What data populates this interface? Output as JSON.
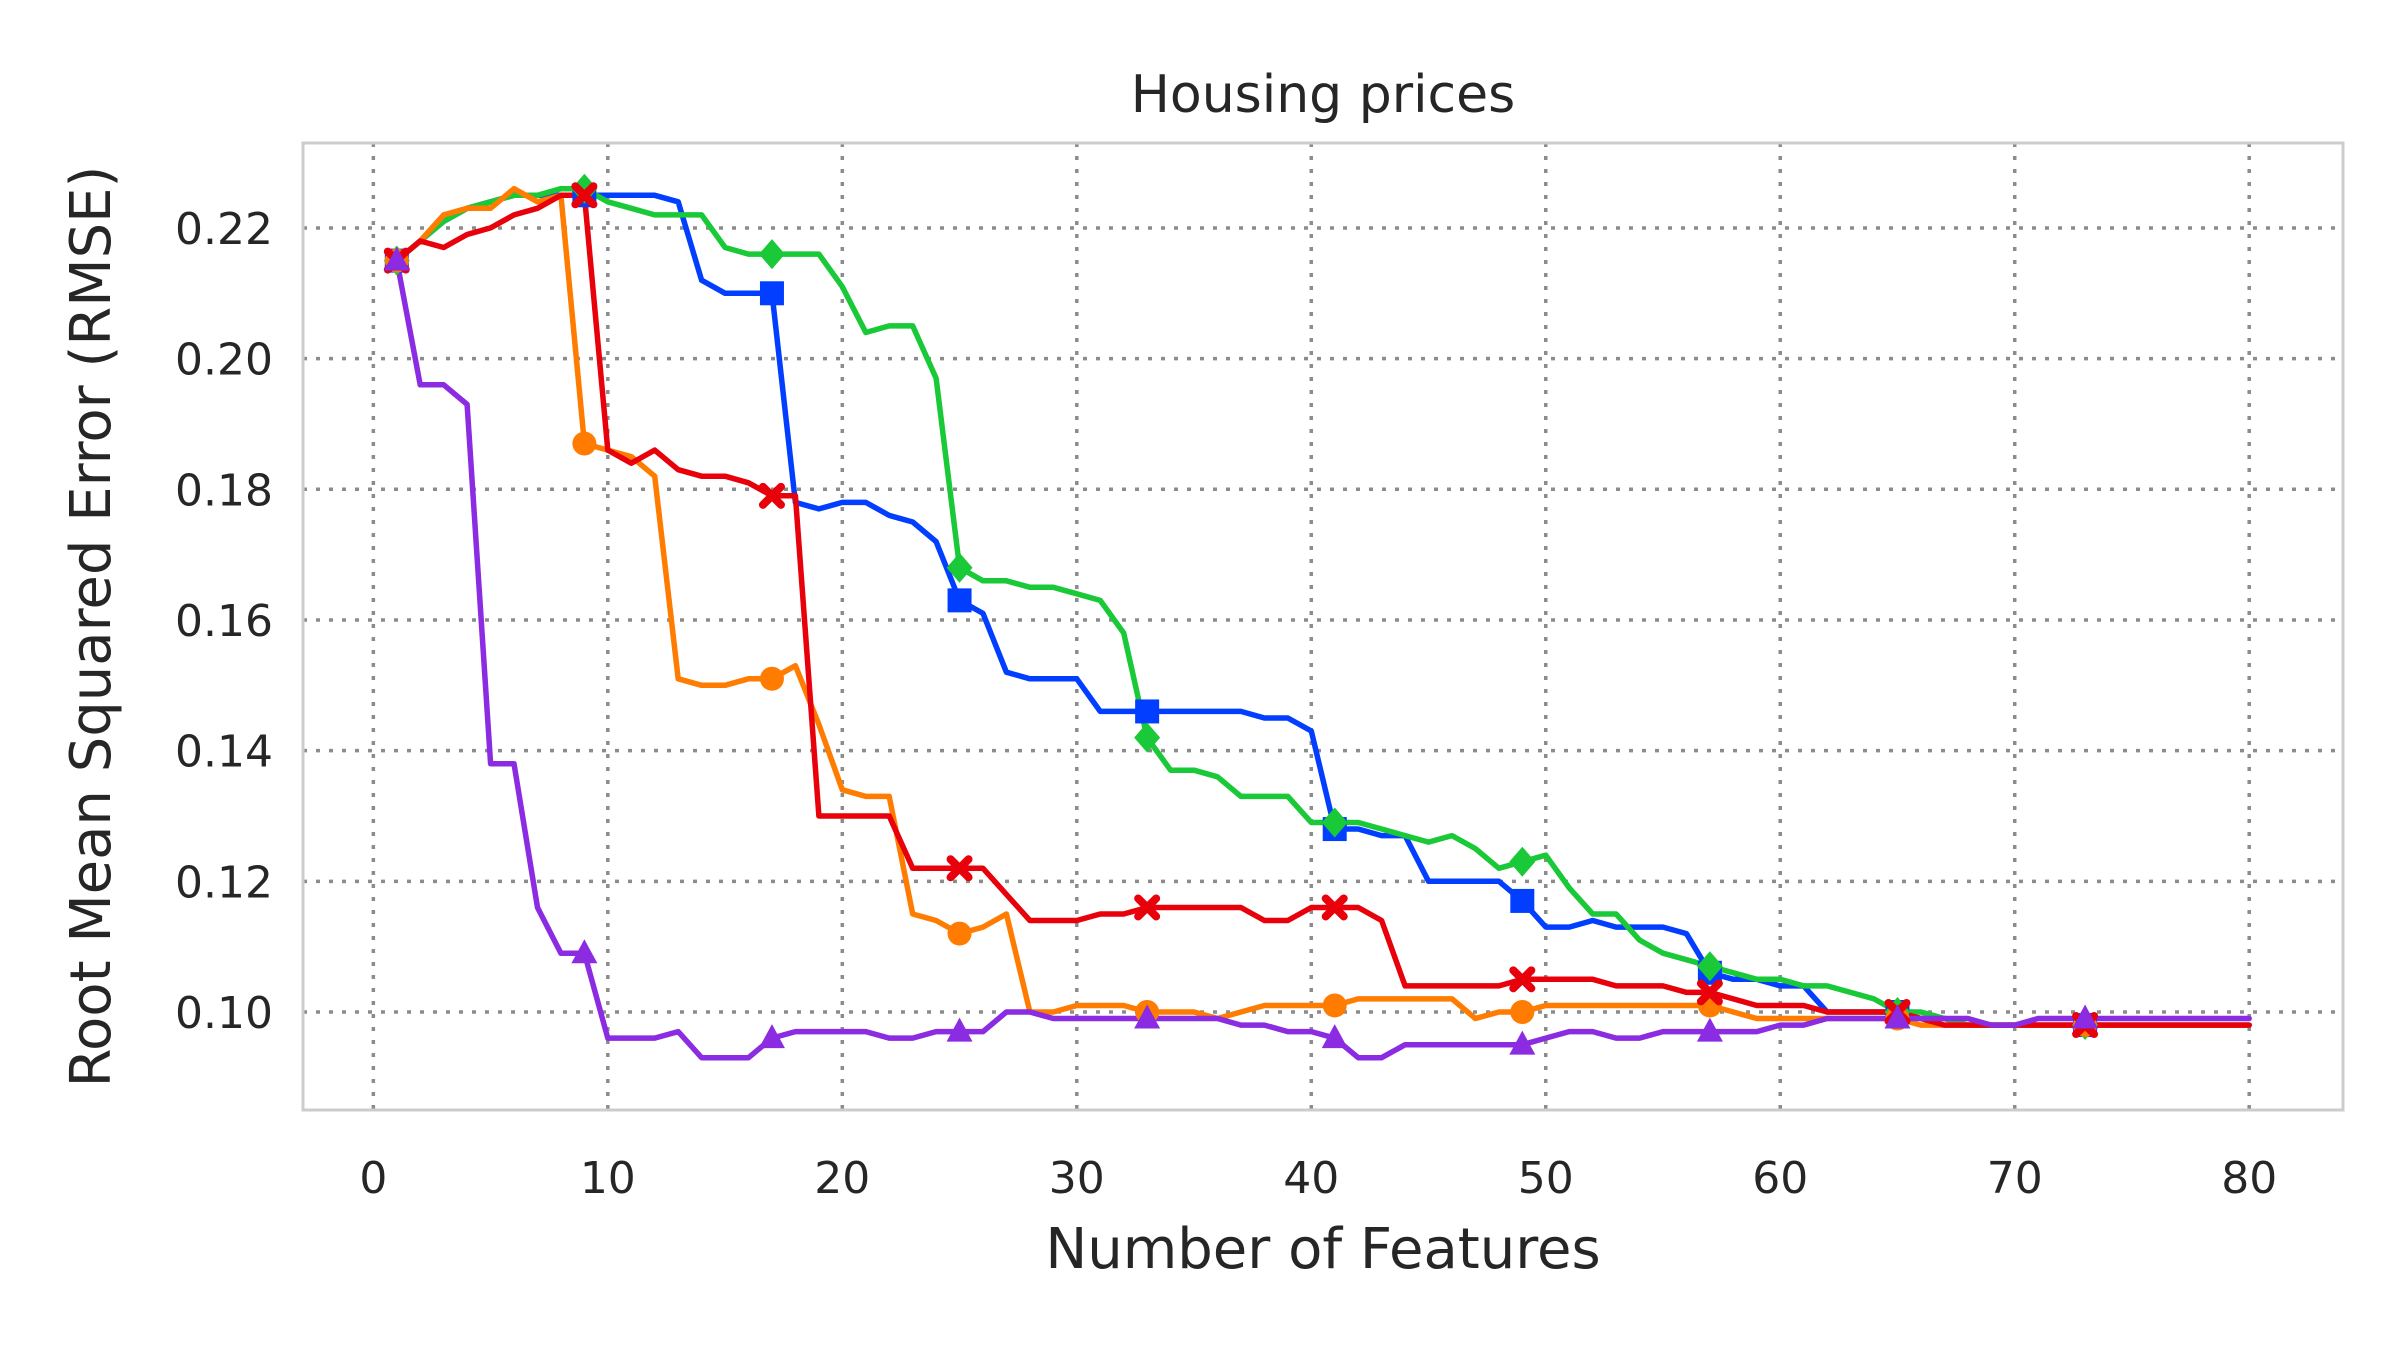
{
  "chart_data": {
    "type": "line",
    "title": "Housing prices",
    "xlabel": "Number of Features",
    "ylabel": "Root Mean Squared Error (RMSE)",
    "xlim": [
      -3,
      84
    ],
    "ylim": [
      0.085,
      0.233
    ],
    "xticks": [
      0,
      10,
      20,
      30,
      40,
      50,
      60,
      70,
      80
    ],
    "yticks": [
      0.1,
      0.12,
      0.14,
      0.16,
      0.18,
      0.2,
      0.22
    ],
    "xtick_labels": [
      "0",
      "10",
      "20",
      "30",
      "40",
      "50",
      "60",
      "70",
      "80"
    ],
    "ytick_labels": [
      "0.10",
      "0.12",
      "0.14",
      "0.16",
      "0.18",
      "0.20",
      "0.22"
    ],
    "grid": true,
    "legend": "none",
    "series": [
      {
        "color": "#023eff",
        "marker": "square",
        "marker_x": [
          1,
          9,
          17,
          25,
          33,
          41,
          49,
          57,
          65,
          73
        ],
        "x": [
          1,
          2,
          3,
          4,
          5,
          6,
          7,
          8,
          9,
          10,
          11,
          12,
          13,
          14,
          15,
          16,
          17,
          18,
          19,
          20,
          21,
          22,
          23,
          24,
          25,
          26,
          27,
          28,
          29,
          30,
          31,
          32,
          33,
          34,
          35,
          36,
          37,
          38,
          39,
          40,
          41,
          42,
          43,
          44,
          45,
          46,
          47,
          48,
          49,
          50,
          51,
          52,
          53,
          54,
          55,
          56,
          57,
          58,
          59,
          60,
          61,
          62,
          63,
          64,
          65,
          66,
          67,
          68,
          69,
          70,
          71,
          72,
          73,
          74,
          75,
          76,
          77,
          78,
          79,
          80
        ],
        "y": [
          0.215,
          0.218,
          0.221,
          0.223,
          0.224,
          0.225,
          0.225,
          0.225,
          0.225,
          0.225,
          0.225,
          0.225,
          0.224,
          0.212,
          0.21,
          0.21,
          0.21,
          0.178,
          0.177,
          0.178,
          0.178,
          0.176,
          0.175,
          0.172,
          0.163,
          0.161,
          0.152,
          0.151,
          0.151,
          0.151,
          0.146,
          0.146,
          0.146,
          0.146,
          0.146,
          0.146,
          0.146,
          0.145,
          0.145,
          0.143,
          0.128,
          0.128,
          0.127,
          0.127,
          0.12,
          0.12,
          0.12,
          0.12,
          0.117,
          0.113,
          0.113,
          0.114,
          0.113,
          0.113,
          0.113,
          0.112,
          0.106,
          0.105,
          0.105,
          0.104,
          0.104,
          0.1,
          0.1,
          0.1,
          0.1,
          0.099,
          0.099,
          0.098,
          0.098,
          0.098,
          0.098,
          0.098,
          0.098,
          0.098,
          0.098,
          0.098,
          0.098,
          0.098,
          0.098,
          0.098
        ]
      },
      {
        "color": "#1ac938",
        "marker": "diamond",
        "marker_x": [
          1,
          9,
          17,
          25,
          33,
          41,
          49,
          57,
          65,
          73
        ],
        "x": [
          1,
          2,
          3,
          4,
          5,
          6,
          7,
          8,
          9,
          10,
          11,
          12,
          13,
          14,
          15,
          16,
          17,
          18,
          19,
          20,
          21,
          22,
          23,
          24,
          25,
          26,
          27,
          28,
          29,
          30,
          31,
          32,
          33,
          34,
          35,
          36,
          37,
          38,
          39,
          40,
          41,
          42,
          43,
          44,
          45,
          46,
          47,
          48,
          49,
          50,
          51,
          52,
          53,
          54,
          55,
          56,
          57,
          58,
          59,
          60,
          61,
          62,
          63,
          64,
          65,
          66,
          67,
          68,
          69,
          70,
          71,
          72,
          73,
          74,
          75,
          76,
          77,
          78,
          79,
          80
        ],
        "y": [
          0.215,
          0.218,
          0.221,
          0.223,
          0.224,
          0.225,
          0.225,
          0.226,
          0.226,
          0.224,
          0.223,
          0.222,
          0.222,
          0.222,
          0.217,
          0.216,
          0.216,
          0.216,
          0.216,
          0.211,
          0.204,
          0.205,
          0.205,
          0.197,
          0.168,
          0.166,
          0.166,
          0.165,
          0.165,
          0.164,
          0.163,
          0.158,
          0.142,
          0.137,
          0.137,
          0.136,
          0.133,
          0.133,
          0.133,
          0.129,
          0.129,
          0.129,
          0.128,
          0.127,
          0.126,
          0.127,
          0.125,
          0.122,
          0.123,
          0.124,
          0.119,
          0.115,
          0.115,
          0.111,
          0.109,
          0.108,
          0.107,
          0.106,
          0.105,
          0.105,
          0.104,
          0.104,
          0.103,
          0.102,
          0.1,
          0.1,
          0.099,
          0.098,
          0.098,
          0.098,
          0.098,
          0.098,
          0.098,
          0.098,
          0.098,
          0.098,
          0.098,
          0.098,
          0.098,
          0.098
        ]
      },
      {
        "color": "#ff7c00",
        "marker": "circle",
        "marker_x": [
          1,
          9,
          17,
          25,
          33,
          41,
          49,
          57,
          65,
          73
        ],
        "x": [
          1,
          2,
          3,
          4,
          5,
          6,
          7,
          8,
          9,
          10,
          11,
          12,
          13,
          14,
          15,
          16,
          17,
          18,
          19,
          20,
          21,
          22,
          23,
          24,
          25,
          26,
          27,
          28,
          29,
          30,
          31,
          32,
          33,
          34,
          35,
          36,
          37,
          38,
          39,
          40,
          41,
          42,
          43,
          44,
          45,
          46,
          47,
          48,
          49,
          50,
          51,
          52,
          53,
          54,
          55,
          56,
          57,
          58,
          59,
          60,
          61,
          62,
          63,
          64,
          65,
          66,
          67,
          68,
          69,
          70,
          71,
          72,
          73,
          74,
          75,
          76,
          77,
          78,
          79,
          80
        ],
        "y": [
          0.215,
          0.218,
          0.222,
          0.223,
          0.223,
          0.226,
          0.224,
          0.225,
          0.187,
          0.186,
          0.185,
          0.182,
          0.151,
          0.15,
          0.15,
          0.151,
          0.151,
          0.153,
          0.144,
          0.134,
          0.133,
          0.133,
          0.115,
          0.114,
          0.112,
          0.113,
          0.115,
          0.1,
          0.1,
          0.101,
          0.101,
          0.101,
          0.1,
          0.1,
          0.1,
          0.099,
          0.1,
          0.101,
          0.101,
          0.101,
          0.101,
          0.102,
          0.102,
          0.102,
          0.102,
          0.102,
          0.099,
          0.1,
          0.1,
          0.101,
          0.101,
          0.101,
          0.101,
          0.101,
          0.101,
          0.101,
          0.101,
          0.1,
          0.099,
          0.099,
          0.099,
          0.099,
          0.099,
          0.099,
          0.099,
          0.098,
          0.098,
          0.098,
          0.098,
          0.098,
          0.098,
          0.098,
          0.098,
          0.098,
          0.098,
          0.098,
          0.098,
          0.098,
          0.098,
          0.098
        ]
      },
      {
        "color": "#e8000b",
        "marker": "x",
        "marker_x": [
          1,
          9,
          17,
          25,
          33,
          41,
          49,
          57,
          65,
          73
        ],
        "x": [
          1,
          2,
          3,
          4,
          5,
          6,
          7,
          8,
          9,
          10,
          11,
          12,
          13,
          14,
          15,
          16,
          17,
          18,
          19,
          20,
          21,
          22,
          23,
          24,
          25,
          26,
          27,
          28,
          29,
          30,
          31,
          32,
          33,
          34,
          35,
          36,
          37,
          38,
          39,
          40,
          41,
          42,
          43,
          44,
          45,
          46,
          47,
          48,
          49,
          50,
          51,
          52,
          53,
          54,
          55,
          56,
          57,
          58,
          59,
          60,
          61,
          62,
          63,
          64,
          65,
          66,
          67,
          68,
          69,
          70,
          71,
          72,
          73,
          74,
          75,
          76,
          77,
          78,
          79,
          80
        ],
        "y": [
          0.215,
          0.218,
          0.217,
          0.219,
          0.22,
          0.222,
          0.223,
          0.225,
          0.225,
          0.186,
          0.184,
          0.186,
          0.183,
          0.182,
          0.182,
          0.181,
          0.179,
          0.179,
          0.13,
          0.13,
          0.13,
          0.13,
          0.122,
          0.122,
          0.122,
          0.122,
          0.118,
          0.114,
          0.114,
          0.114,
          0.115,
          0.115,
          0.116,
          0.116,
          0.116,
          0.116,
          0.116,
          0.114,
          0.114,
          0.116,
          0.116,
          0.116,
          0.114,
          0.104,
          0.104,
          0.104,
          0.104,
          0.104,
          0.105,
          0.105,
          0.105,
          0.105,
          0.104,
          0.104,
          0.104,
          0.103,
          0.103,
          0.102,
          0.101,
          0.101,
          0.101,
          0.1,
          0.1,
          0.1,
          0.1,
          0.099,
          0.098,
          0.098,
          0.098,
          0.098,
          0.098,
          0.098,
          0.098,
          0.098,
          0.098,
          0.098,
          0.098,
          0.098,
          0.098,
          0.098
        ]
      },
      {
        "color": "#8b2be2",
        "marker": "triangle",
        "marker_x": [
          1,
          9,
          17,
          25,
          33,
          41,
          49,
          57,
          65,
          73
        ],
        "x": [
          1,
          2,
          3,
          4,
          5,
          6,
          7,
          8,
          9,
          10,
          11,
          12,
          13,
          14,
          15,
          16,
          17,
          18,
          19,
          20,
          21,
          22,
          23,
          24,
          25,
          26,
          27,
          28,
          29,
          30,
          31,
          32,
          33,
          34,
          35,
          36,
          37,
          38,
          39,
          40,
          41,
          42,
          43,
          44,
          45,
          46,
          47,
          48,
          49,
          50,
          51,
          52,
          53,
          54,
          55,
          56,
          57,
          58,
          59,
          60,
          61,
          62,
          63,
          64,
          65,
          66,
          67,
          68,
          69,
          70,
          71,
          72,
          73,
          74,
          75,
          76,
          77,
          78,
          79,
          80
        ],
        "y": [
          0.215,
          0.196,
          0.196,
          0.193,
          0.138,
          0.138,
          0.116,
          0.109,
          0.109,
          0.096,
          0.096,
          0.096,
          0.097,
          0.093,
          0.093,
          0.093,
          0.096,
          0.097,
          0.097,
          0.097,
          0.097,
          0.096,
          0.096,
          0.097,
          0.097,
          0.097,
          0.1,
          0.1,
          0.099,
          0.099,
          0.099,
          0.099,
          0.099,
          0.099,
          0.099,
          0.099,
          0.098,
          0.098,
          0.097,
          0.097,
          0.096,
          0.093,
          0.093,
          0.095,
          0.095,
          0.095,
          0.095,
          0.095,
          0.095,
          0.096,
          0.097,
          0.097,
          0.096,
          0.096,
          0.097,
          0.097,
          0.097,
          0.097,
          0.097,
          0.098,
          0.098,
          0.099,
          0.099,
          0.099,
          0.099,
          0.099,
          0.099,
          0.099,
          0.098,
          0.098,
          0.099,
          0.099,
          0.099,
          0.099,
          0.099,
          0.099,
          0.099,
          0.099,
          0.099,
          0.099
        ]
      }
    ]
  }
}
